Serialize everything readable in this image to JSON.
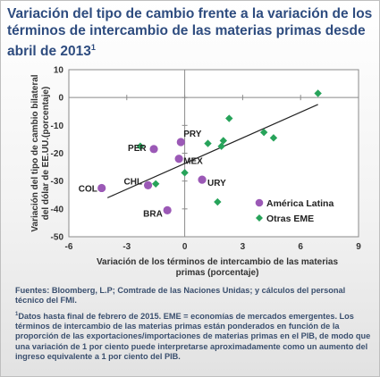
{
  "title": "Variación del tipo de cambio frente a la variación de los términos de intercambio de las materias primas desde abril de 2013",
  "title_footnote_mark": "1",
  "chart_data": {
    "type": "scatter",
    "xlabel": "Variación de los términos de intercambio de las materias primas (porcentaje)",
    "ylabel": "Variación del tipo de cambio bilateral del dólar de EE.UU.(porcentaje)",
    "xlim": [
      -6,
      9
    ],
    "ylim": [
      -50,
      10
    ],
    "xticks": [
      -6,
      -3,
      0,
      3,
      6,
      9
    ],
    "yticks": [
      10,
      0,
      -10,
      -20,
      -30,
      -40,
      -50
    ],
    "grid": false,
    "legend_position": "bottom-right",
    "colors": {
      "america_latina": "#9b59b6",
      "otras_eme": "#27a35a",
      "trend": "#222222"
    },
    "series": [
      {
        "name": "América Latina",
        "marker": "circle",
        "points": [
          {
            "x": -4.3,
            "y": -32.5,
            "label": "COL"
          },
          {
            "x": -1.6,
            "y": -18.5,
            "label": "PER"
          },
          {
            "x": -0.2,
            "y": -16.0,
            "label": "PRY"
          },
          {
            "x": -0.3,
            "y": -22.0,
            "label": "MEX"
          },
          {
            "x": -1.9,
            "y": -31.5,
            "label": "CHL"
          },
          {
            "x": -0.9,
            "y": -40.5,
            "label": "BRA"
          },
          {
            "x": 0.9,
            "y": -29.5,
            "label": "URY"
          }
        ]
      },
      {
        "name": "Otras EME",
        "marker": "diamond",
        "points": [
          {
            "x": -2.3,
            "y": -17.5
          },
          {
            "x": -1.5,
            "y": -31.0
          },
          {
            "x": 0.0,
            "y": -27.0
          },
          {
            "x": 1.2,
            "y": -16.5
          },
          {
            "x": 1.7,
            "y": -37.5
          },
          {
            "x": 1.9,
            "y": -17.5
          },
          {
            "x": 2.0,
            "y": -15.5
          },
          {
            "x": 2.3,
            "y": -7.5
          },
          {
            "x": 4.1,
            "y": -12.5
          },
          {
            "x": 4.6,
            "y": -14.5
          },
          {
            "x": 6.9,
            "y": 1.5
          }
        ]
      }
    ],
    "trendline": {
      "x": [
        -4.0,
        6.9
      ],
      "y": [
        -36.0,
        -2.5
      ]
    }
  },
  "notes": {
    "sources": "Fuentes: Bloomberg, L.P; Comtrade de las Naciones Unidas; y cálculos del personal técnico del FMI.",
    "footnote_mark": "1",
    "footnote": "Datos hasta final de febrero de 2015. EME = economías de mercados emergentes. Los términos de intercambio de las materias primas están ponderados en función de la proporción de las exportaciones/importaciones de materias primas en el PIB, de modo que una variación de 1 por ciento puede interpretarse aproximadamente como un aumento del ingreso equivalente a 1 por ciento del PIB."
  }
}
